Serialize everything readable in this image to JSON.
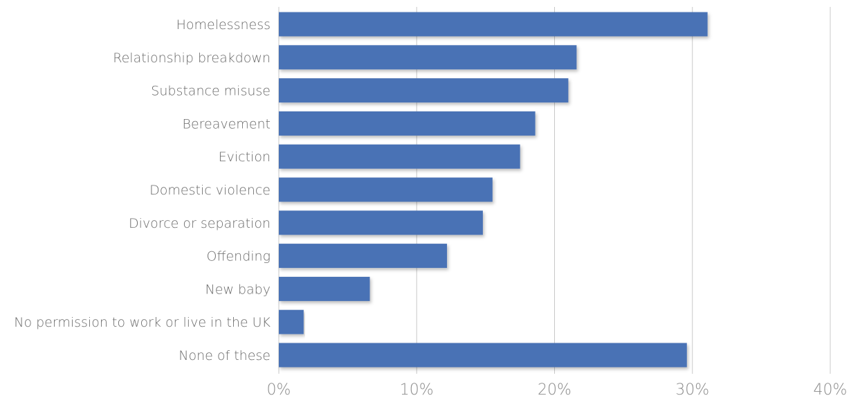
{
  "chart_data": {
    "type": "bar",
    "orientation": "horizontal",
    "title": "",
    "xlabel": "",
    "ylabel": "",
    "categories": [
      "Homelessness",
      "Relationship breakdown",
      "Substance misuse",
      "Bereavement",
      "Eviction",
      "Domestic violence",
      "Divorce or separation",
      "Offending",
      "New baby",
      "No permission to work or live in the UK",
      "None of these"
    ],
    "values": [
      31.1,
      21.6,
      21.0,
      18.6,
      17.5,
      15.5,
      14.8,
      12.2,
      6.6,
      1.8,
      29.6
    ],
    "xlim": [
      0,
      40
    ],
    "xticks": [
      0,
      10,
      20,
      30,
      40
    ],
    "tick_labels": [
      "0%",
      "10%",
      "20%",
      "30%",
      "40%"
    ],
    "grid": true,
    "legend": "none",
    "bar_color": "#4a72b5"
  }
}
